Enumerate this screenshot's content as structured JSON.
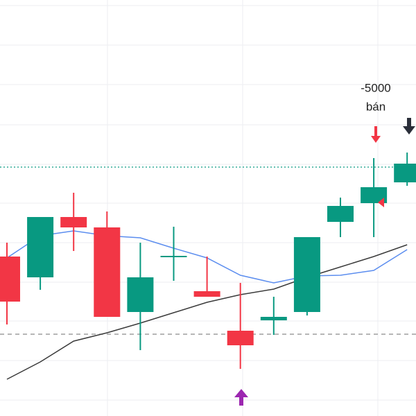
{
  "chart_data": {
    "type": "candlestick",
    "categories": [
      null,
      null,
      null,
      null,
      null,
      null,
      null,
      null,
      null,
      null,
      null,
      null,
      null
    ],
    "open": [
      230,
      200,
      287,
      272,
      150,
      229,
      180,
      123,
      138,
      150,
      280,
      307,
      337
    ],
    "close": [
      165,
      287,
      272,
      143,
      200,
      231,
      172,
      102,
      143,
      258,
      303,
      330,
      364
    ],
    "high": [
      250,
      287,
      322,
      295,
      250,
      273,
      230,
      192,
      172,
      258,
      315,
      372,
      380
    ],
    "low": [
      132,
      182,
      238,
      143,
      95,
      195,
      172,
      68,
      117,
      145,
      258,
      258,
      332
    ],
    "up_color": "#089981",
    "down_color": "#f23645",
    "ylim": [
      0,
      600
    ],
    "yticks": [
      23,
      80,
      137,
      193,
      250,
      307,
      363,
      420,
      478,
      535,
      592
    ],
    "grid": true,
    "overlays": [
      {
        "color": "#5b8def",
        "values": [
          228,
          260,
          267,
          260,
          257,
          242,
          228,
          203,
          192,
          202,
          203,
          210,
          240
        ]
      },
      {
        "color": "#3a3a3a",
        "values": [
          53,
          78,
          108,
          120,
          134,
          149,
          164,
          175,
          183,
          200,
          215,
          230,
          247
        ]
      }
    ],
    "price_lines": [
      {
        "value": 359,
        "color": "#089981",
        "style": "dotted"
      },
      {
        "value": 118,
        "color": "#8a8a8a",
        "style": "dashed"
      }
    ],
    "annotation_amount": "-5000",
    "annotation_action": "bán"
  }
}
